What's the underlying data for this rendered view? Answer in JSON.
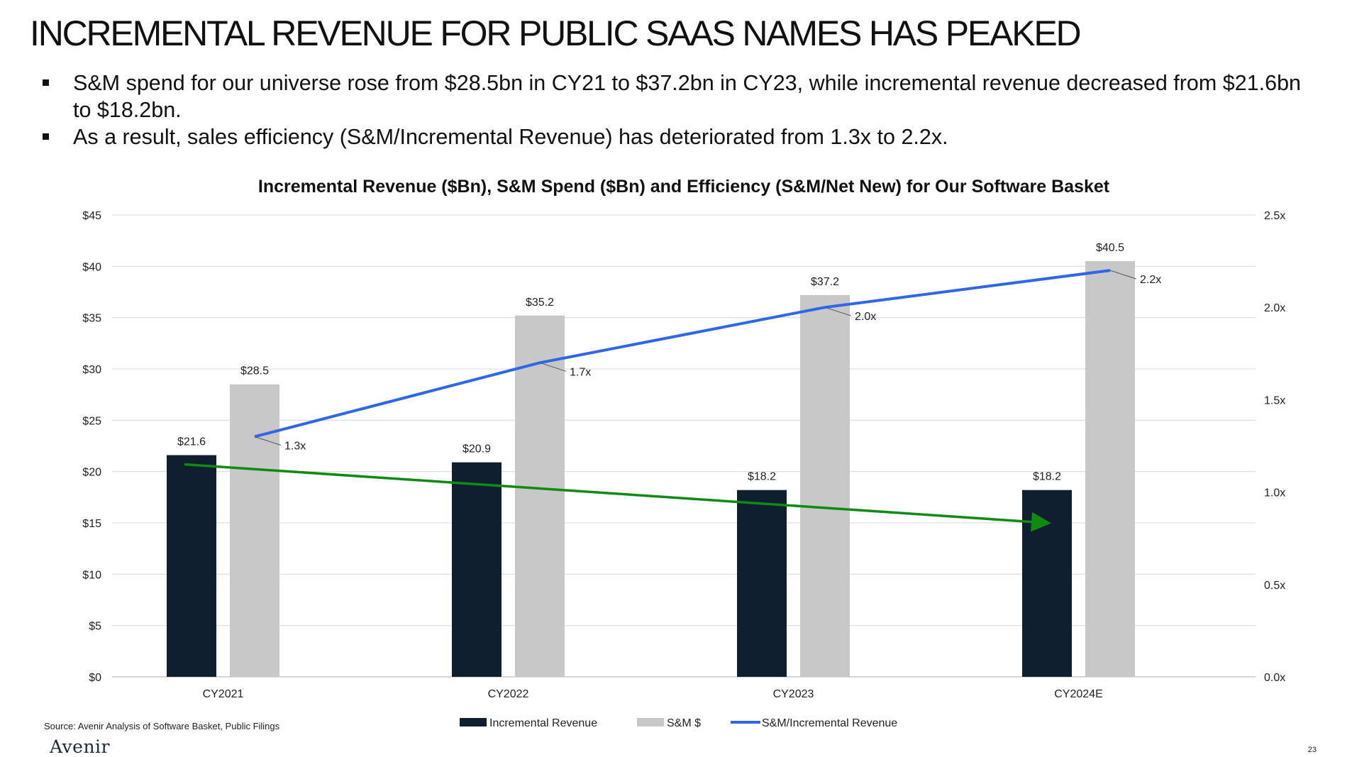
{
  "header": {
    "title": "INCREMENTAL REVENUE FOR PUBLIC SAAS NAMES HAS PEAKED"
  },
  "bullets": [
    "S&M spend for our universe rose from $28.5bn in CY21 to $37.2bn in CY23, while incremental revenue decreased from $21.6bn to $18.2bn.",
    "As a result, sales efficiency (S&M/Incremental Revenue) has deteriorated from 1.3x to 2.2x."
  ],
  "chart_data": {
    "type": "bar",
    "title": "Incremental Revenue ($Bn), S&M Spend ($Bn) and Efficiency (S&M/Net New) for Our Software Basket",
    "categories": [
      "CY2021",
      "CY2022",
      "CY2023",
      "CY2024E"
    ],
    "series": [
      {
        "name": "Incremental Revenue",
        "kind": "bar",
        "axis": "left",
        "color": "#0f1f30",
        "values": [
          21.6,
          20.9,
          18.2,
          18.2
        ],
        "labels": [
          "$21.6",
          "$20.9",
          "$18.2",
          "$18.2"
        ]
      },
      {
        "name": "S&M $",
        "kind": "bar",
        "axis": "left",
        "color": "#c8c8c8",
        "values": [
          28.5,
          35.2,
          37.2,
          40.5
        ],
        "labels": [
          "$28.5",
          "$35.2",
          "$37.2",
          "$40.5"
        ]
      },
      {
        "name": "S&M/Incremental Revenue",
        "kind": "line",
        "axis": "right",
        "color": "#2f67e8",
        "values": [
          1.3,
          1.7,
          2.0,
          2.2
        ],
        "labels": [
          "1.3x",
          "1.7x",
          "2.0x",
          "2.2x"
        ]
      }
    ],
    "trend_arrow": {
      "color": "#0f8a12",
      "from": {
        "category": "CY2021",
        "value": 20.7
      },
      "to": {
        "category": "CY2024E",
        "value": 15.0
      }
    },
    "y_left": {
      "min": 0,
      "max": 45,
      "step": 5,
      "tick_labels": [
        "$0",
        "$5",
        "$10",
        "$15",
        "$20",
        "$25",
        "$30",
        "$35",
        "$40",
        "$45"
      ]
    },
    "y_right": {
      "min": 0,
      "max": 2.5,
      "step": 0.5,
      "tick_labels": [
        "0.0x",
        "0.5x",
        "1.0x",
        "1.5x",
        "2.0x",
        "2.5x"
      ]
    },
    "grid": true,
    "legend_position": "bottom"
  },
  "footer": {
    "source": "Source: Avenir Analysis of Software Basket, Public Filings",
    "logo": "Avenir",
    "page_number": "23"
  }
}
